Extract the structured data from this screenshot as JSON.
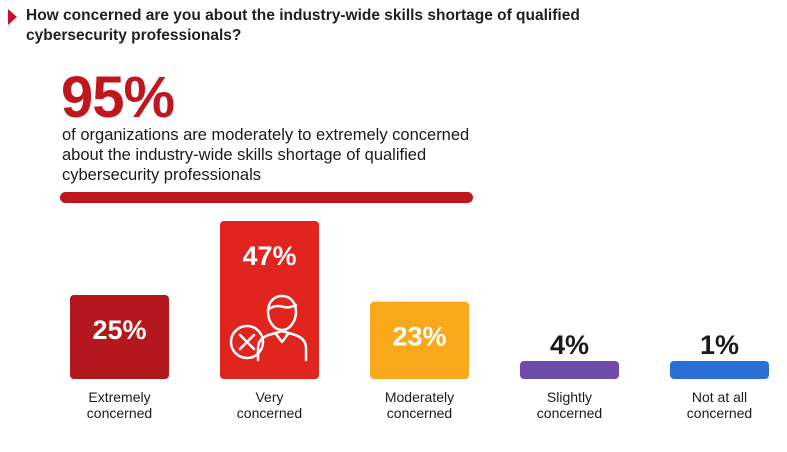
{
  "question": "How concerned are you about the industry-wide skills shortage of qualified cybersecurity professionals?",
  "headline": {
    "value": "95%",
    "description": "of organizations are moderately to extremely concerned about the industry-wide skills shortage of qualified cybersecurity professionals",
    "color": "#c0171f"
  },
  "icon": "person-x-icon",
  "chart_data": {
    "type": "bar",
    "categories": [
      [
        "Extremely",
        "concerned"
      ],
      [
        "Very",
        "concerned"
      ],
      [
        "Moderately",
        "concerned"
      ],
      [
        "Slightly",
        "concerned"
      ],
      [
        "Not at all",
        "concerned"
      ]
    ],
    "values": [
      25,
      47,
      23,
      4,
      1
    ],
    "data_labels": [
      "25%",
      "47%",
      "23%",
      "4%",
      "1%"
    ],
    "colors": [
      "#b5171e",
      "#e0241e",
      "#f7a81b",
      "#6f4ca7",
      "#2a6fd6"
    ],
    "unit": "%",
    "ylim": [
      0,
      47
    ]
  }
}
